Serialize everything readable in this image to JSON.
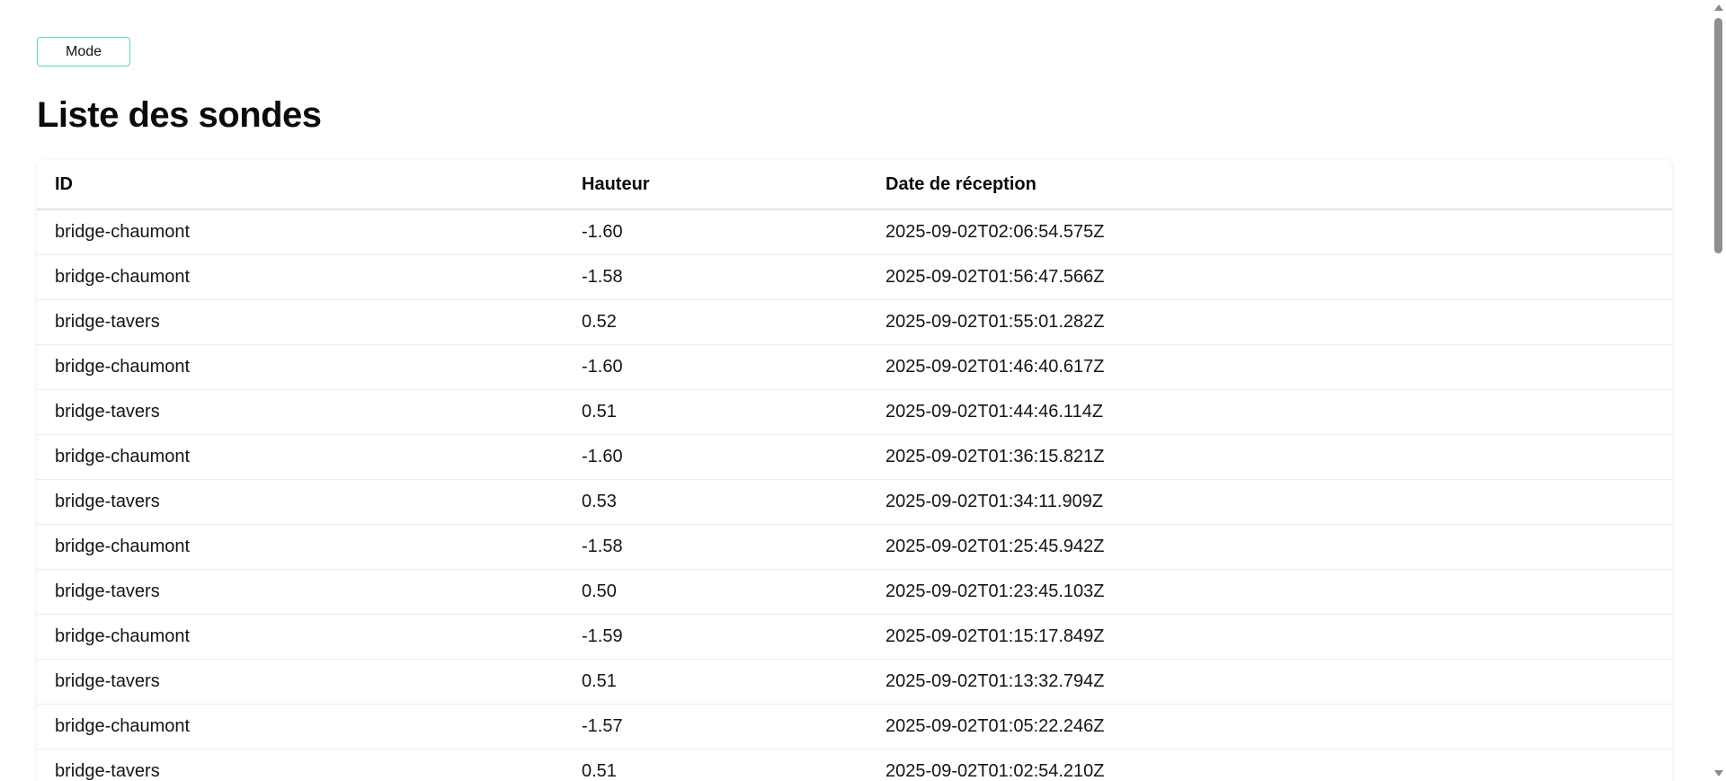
{
  "header": {
    "mode_label": "Mode",
    "title": "Liste des sondes"
  },
  "table": {
    "columns": [
      "ID",
      "Hauteur",
      "Date de réception"
    ],
    "rows": [
      [
        "bridge-chaumont",
        "-1.60",
        "2025-09-02T02:06:54.575Z"
      ],
      [
        "bridge-chaumont",
        "-1.58",
        "2025-09-02T01:56:47.566Z"
      ],
      [
        "bridge-tavers",
        "0.52",
        "2025-09-02T01:55:01.282Z"
      ],
      [
        "bridge-chaumont",
        "-1.60",
        "2025-09-02T01:46:40.617Z"
      ],
      [
        "bridge-tavers",
        "0.51",
        "2025-09-02T01:44:46.114Z"
      ],
      [
        "bridge-chaumont",
        "-1.60",
        "2025-09-02T01:36:15.821Z"
      ],
      [
        "bridge-tavers",
        "0.53",
        "2025-09-02T01:34:11.909Z"
      ],
      [
        "bridge-chaumont",
        "-1.58",
        "2025-09-02T01:25:45.942Z"
      ],
      [
        "bridge-tavers",
        "0.50",
        "2025-09-02T01:23:45.103Z"
      ],
      [
        "bridge-chaumont",
        "-1.59",
        "2025-09-02T01:15:17.849Z"
      ],
      [
        "bridge-tavers",
        "0.51",
        "2025-09-02T01:13:32.794Z"
      ],
      [
        "bridge-chaumont",
        "-1.57",
        "2025-09-02T01:05:22.246Z"
      ],
      [
        "bridge-tavers",
        "0.51",
        "2025-09-02T01:02:54.210Z"
      ]
    ]
  },
  "colors": {
    "mode_border": "#5ad8c8",
    "text": "#111111",
    "divider": "#ececec"
  }
}
